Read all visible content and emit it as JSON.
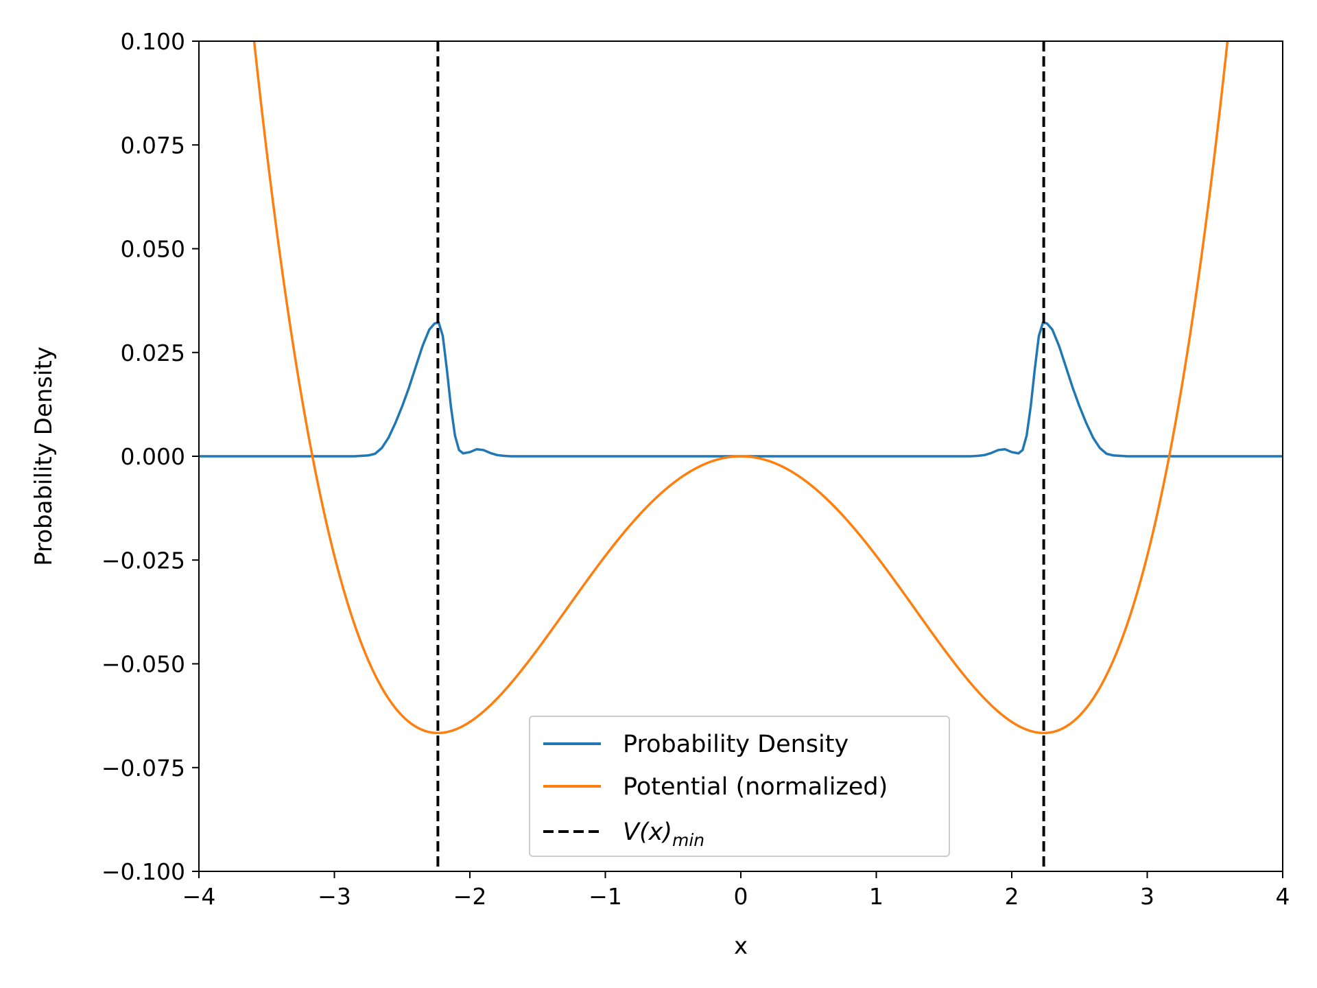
{
  "chart_data": {
    "type": "line",
    "title": "",
    "xlabel": "x",
    "ylabel": "Probability Density",
    "xlim": [
      -4,
      4
    ],
    "ylim": [
      -0.1,
      0.1
    ],
    "grid": false,
    "legend_position": "lower-center",
    "x_ticks": [
      {
        "value": -4,
        "label": "−4"
      },
      {
        "value": -3,
        "label": "−3"
      },
      {
        "value": -2,
        "label": "−2"
      },
      {
        "value": -1,
        "label": "−1"
      },
      {
        "value": 0,
        "label": "0"
      },
      {
        "value": 1,
        "label": "1"
      },
      {
        "value": 2,
        "label": "2"
      },
      {
        "value": 3,
        "label": "3"
      },
      {
        "value": 4,
        "label": "4"
      }
    ],
    "y_ticks": [
      {
        "value": -0.1,
        "label": "−0.100"
      },
      {
        "value": -0.075,
        "label": "−0.075"
      },
      {
        "value": -0.05,
        "label": "−0.050"
      },
      {
        "value": -0.025,
        "label": "−0.025"
      },
      {
        "value": 0.0,
        "label": "0.000"
      },
      {
        "value": 0.025,
        "label": "0.025"
      },
      {
        "value": 0.05,
        "label": "0.050"
      },
      {
        "value": 0.075,
        "label": "0.075"
      },
      {
        "value": 0.1,
        "label": "0.100"
      }
    ],
    "series": [
      {
        "name": "Probability Density",
        "color": "#1f77b4",
        "style": "solid",
        "points": [
          [
            -4.0,
            0.0
          ],
          [
            -3.0,
            0.0
          ],
          [
            -2.85,
            0.0
          ],
          [
            -2.75,
            0.0002
          ],
          [
            -2.7,
            0.0006
          ],
          [
            -2.65,
            0.002
          ],
          [
            -2.6,
            0.0045
          ],
          [
            -2.55,
            0.008
          ],
          [
            -2.5,
            0.012
          ],
          [
            -2.45,
            0.0165
          ],
          [
            -2.4,
            0.0215
          ],
          [
            -2.35,
            0.0265
          ],
          [
            -2.3,
            0.0305
          ],
          [
            -2.26,
            0.032
          ],
          [
            -2.23,
            0.0322
          ],
          [
            -2.2,
            0.029
          ],
          [
            -2.17,
            0.021
          ],
          [
            -2.14,
            0.012
          ],
          [
            -2.11,
            0.005
          ],
          [
            -2.08,
            0.0015
          ],
          [
            -2.05,
            0.0007
          ],
          [
            -2.0,
            0.001
          ],
          [
            -1.95,
            0.0017
          ],
          [
            -1.9,
            0.0015
          ],
          [
            -1.85,
            0.0008
          ],
          [
            -1.8,
            0.0003
          ],
          [
            -1.75,
            0.0001
          ],
          [
            -1.7,
            0.0
          ],
          [
            0.0,
            0.0
          ],
          [
            1.7,
            0.0
          ],
          [
            1.75,
            0.0001
          ],
          [
            1.8,
            0.0003
          ],
          [
            1.85,
            0.0008
          ],
          [
            1.9,
            0.0015
          ],
          [
            1.95,
            0.0017
          ],
          [
            2.0,
            0.001
          ],
          [
            2.05,
            0.0007
          ],
          [
            2.08,
            0.0015
          ],
          [
            2.11,
            0.005
          ],
          [
            2.14,
            0.012
          ],
          [
            2.17,
            0.021
          ],
          [
            2.2,
            0.029
          ],
          [
            2.23,
            0.0322
          ],
          [
            2.26,
            0.032
          ],
          [
            2.3,
            0.0305
          ],
          [
            2.35,
            0.0265
          ],
          [
            2.4,
            0.0215
          ],
          [
            2.45,
            0.0165
          ],
          [
            2.5,
            0.012
          ],
          [
            2.55,
            0.008
          ],
          [
            2.6,
            0.0045
          ],
          [
            2.65,
            0.002
          ],
          [
            2.7,
            0.0006
          ],
          [
            2.75,
            0.0002
          ],
          [
            2.85,
            0.0
          ],
          [
            3.0,
            0.0
          ],
          [
            4.0,
            0.0
          ]
        ]
      },
      {
        "name": "Potential (normalized)",
        "color": "#ff7f0e",
        "style": "solid",
        "function": {
          "kind": "double-well",
          "formula": "y = (x^4/4 - 5x^2/2) / 93.75",
          "x_range": [
            -3.62,
            3.62
          ],
          "samples": 400
        }
      },
      {
        "name": "V(x)_min",
        "color": "#000000",
        "style": "dashed",
        "vlines": [
          -2.236,
          2.236
        ]
      }
    ],
    "legend": [
      {
        "label": "Probability Density",
        "color": "#1f77b4",
        "style": "solid"
      },
      {
        "label": "Potential (normalized)",
        "color": "#ff7f0e",
        "style": "solid"
      },
      {
        "label_main": "V",
        "label_rest": "(x)",
        "label_sub": "min",
        "color": "#000000",
        "style": "dashed"
      }
    ]
  }
}
